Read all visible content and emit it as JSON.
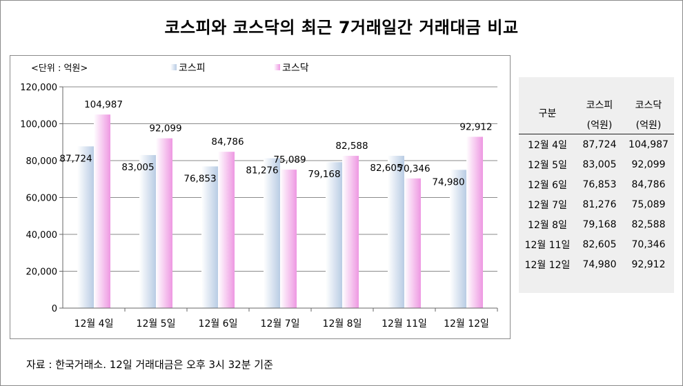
{
  "title": "코스피와 코스닥의 최근 7거래일간 거래대금 비교",
  "source": "자료 : 한국거래소. 12일 거래대금은 오후 3시 32분 기준",
  "colors": {
    "kospi_light": "#ffffff",
    "kospi_dark": "#b9cce4",
    "kosdaq_light": "#ffffff",
    "kosdaq_dark": "#ee98e2",
    "grid": "#8a8a8a"
  },
  "chart_data": {
    "type": "bar",
    "unit_label": "<단위 : 억원>",
    "categories": [
      "12월 4일",
      "12월 5일",
      "12월 6일",
      "12월 7일",
      "12월 8일",
      "12월 11일",
      "12월 12일"
    ],
    "series": [
      {
        "name": "코스피",
        "values": [
          87724,
          83005,
          76853,
          81276,
          79168,
          82605,
          74980
        ]
      },
      {
        "name": "코스닥",
        "values": [
          104987,
          92099,
          84786,
          75089,
          82588,
          70346,
          92912
        ]
      }
    ],
    "ylim": [
      0,
      120000
    ],
    "yticks": [
      0,
      20000,
      40000,
      60000,
      80000,
      100000,
      120000
    ],
    "ytick_labels": [
      "0",
      "20,000",
      "40,000",
      "60,000",
      "80,000",
      "100,000",
      "120,000"
    ],
    "legend_position": "top",
    "grid": true
  },
  "table": {
    "header": {
      "col0": "구분",
      "col1_line1": "코스피",
      "col1_line2": "(억원)",
      "col2_line1": "코스닥",
      "col2_line2": "(억원)"
    },
    "rows": [
      {
        "date": "12월 4일",
        "kospi": "87,724",
        "kosdaq": "104,987"
      },
      {
        "date": "12월 5일",
        "kospi": "83,005",
        "kosdaq": "92,099"
      },
      {
        "date": "12월 6일",
        "kospi": "76,853",
        "kosdaq": "84,786"
      },
      {
        "date": "12월 7일",
        "kospi": "81,276",
        "kosdaq": "75,089"
      },
      {
        "date": "12월 8일",
        "kospi": "79,168",
        "kosdaq": "82,588"
      },
      {
        "date": "12월 11일",
        "kospi": "82,605",
        "kosdaq": "70,346"
      },
      {
        "date": "12월 12일",
        "kospi": "74,980",
        "kosdaq": "92,912"
      }
    ]
  }
}
